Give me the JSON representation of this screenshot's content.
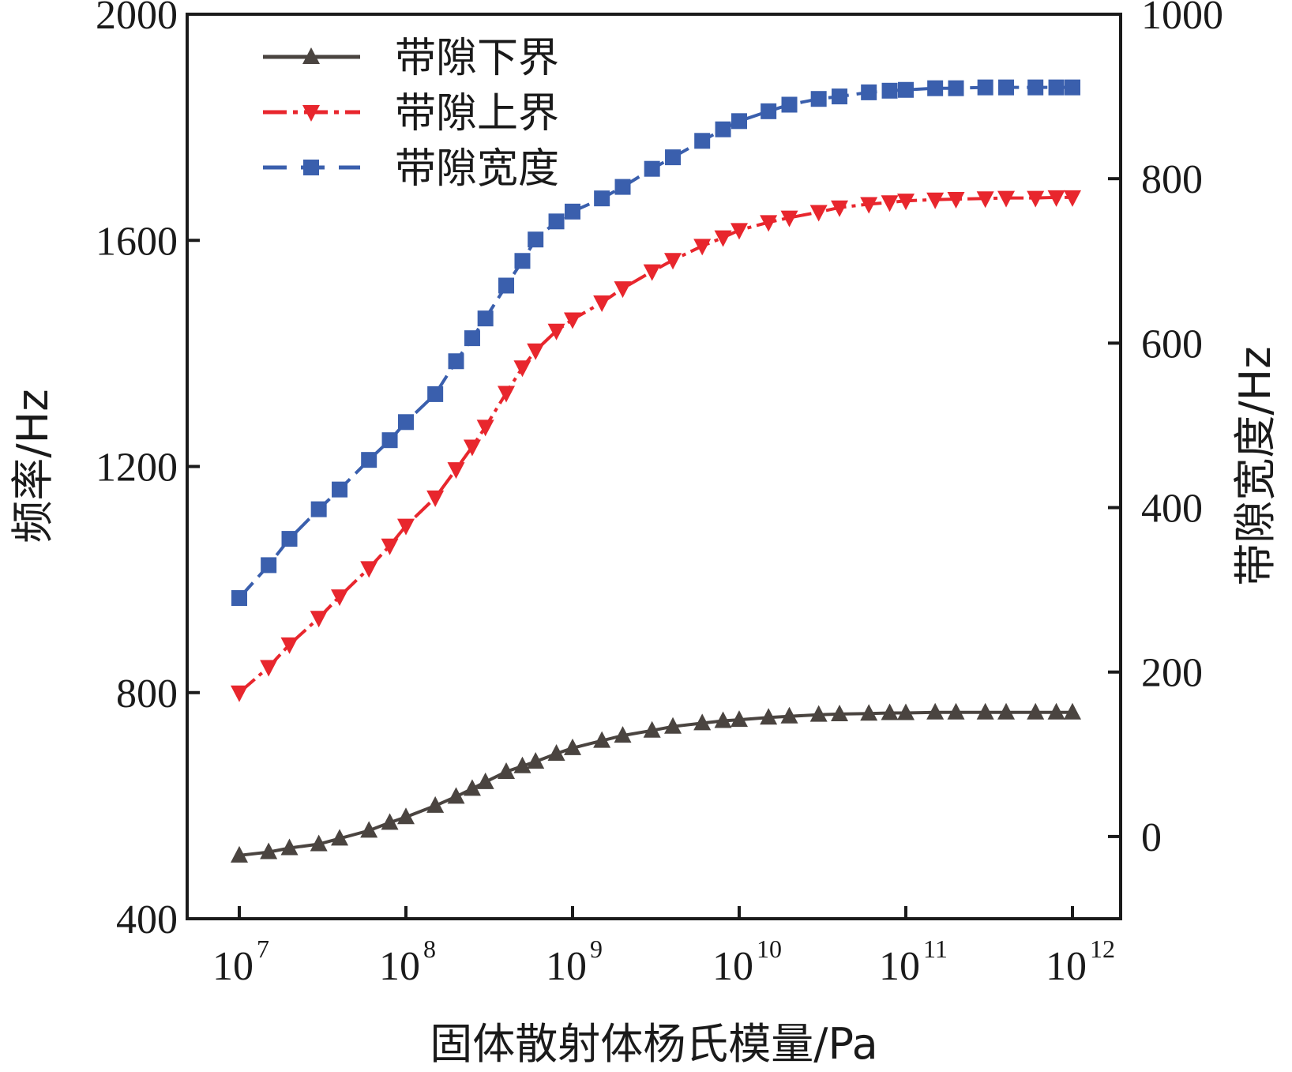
{
  "chart_data": {
    "type": "line",
    "xscale": "log",
    "x_tick_labels": [
      {
        "base": "10",
        "exp": "7"
      },
      {
        "base": "10",
        "exp": "8"
      },
      {
        "base": "10",
        "exp": "9"
      },
      {
        "base": "10",
        "exp": "10"
      },
      {
        "base": "10",
        "exp": "11"
      },
      {
        "base": "10",
        "exp": "12"
      }
    ],
    "xlabel": "固体散射体杨氏模量/Pa",
    "ylabel_left": "频率/Hz",
    "ylabel_right": "带隙宽度/Hz",
    "ylim_left": [
      400,
      2000
    ],
    "ylim_right": [
      -100,
      1000
    ],
    "yticks_left": [
      "400",
      "800",
      "1200",
      "1600",
      "2000"
    ],
    "yticks_right": [
      "0",
      "200",
      "400",
      "600",
      "800",
      "1000"
    ],
    "legend_position": "top-left",
    "grid": false,
    "x": [
      10000000.0,
      15000000.0,
      20000000.0,
      30000000.0,
      40000000.0,
      60000000.0,
      80000000.0,
      100000000.0,
      150000000.0,
      200000000.0,
      250000000.0,
      300000000.0,
      400000000.0,
      500000000.0,
      600000000.0,
      800000000.0,
      1000000000.0,
      1500000000.0,
      2000000000.0,
      3000000000.0,
      4000000000.0,
      6000000000.0,
      8000000000.0,
      10000000000.0,
      15000000000.0,
      20000000000.0,
      30000000000.0,
      40000000000.0,
      60000000000.0,
      80000000000.0,
      100000000000.0,
      150000000000.0,
      200000000000.0,
      300000000000.0,
      400000000000.0,
      600000000000.0,
      800000000000.0,
      1000000000000.0
    ],
    "series": [
      {
        "name": "带隙下界",
        "axis": "left",
        "color": "#4a4440",
        "marker": "triangle-up",
        "line": "solid",
        "values": [
          512,
          518,
          525,
          532,
          542,
          556,
          570,
          580,
          600,
          616,
          630,
          642,
          660,
          670,
          678,
          692,
          702,
          715,
          724,
          733,
          740,
          746,
          750,
          752,
          756,
          758,
          761,
          762,
          763,
          764,
          764,
          765,
          765,
          765,
          765,
          765,
          765,
          765
        ]
      },
      {
        "name": "带隙上界",
        "axis": "left",
        "color": "#e8262d",
        "marker": "triangle-down",
        "line": "dash-dot",
        "values": [
          800,
          845,
          885,
          932,
          970,
          1020,
          1060,
          1095,
          1145,
          1195,
          1235,
          1270,
          1330,
          1375,
          1405,
          1440,
          1460,
          1490,
          1515,
          1545,
          1565,
          1590,
          1605,
          1618,
          1632,
          1640,
          1650,
          1658,
          1664,
          1667,
          1670,
          1672,
          1673,
          1674,
          1675,
          1675,
          1676,
          1676
        ]
      },
      {
        "name": "带隙宽度",
        "axis": "right",
        "color": "#3a5fad",
        "marker": "square",
        "line": "dashed",
        "values": [
          290,
          330,
          362,
          398,
          422,
          458,
          482,
          504,
          538,
          578,
          606,
          630,
          670,
          700,
          726,
          748,
          760,
          776,
          790,
          812,
          826,
          846,
          860,
          870,
          882,
          890,
          897,
          900,
          905,
          907,
          908,
          910,
          910,
          911,
          911,
          911,
          911,
          911
        ]
      }
    ]
  }
}
